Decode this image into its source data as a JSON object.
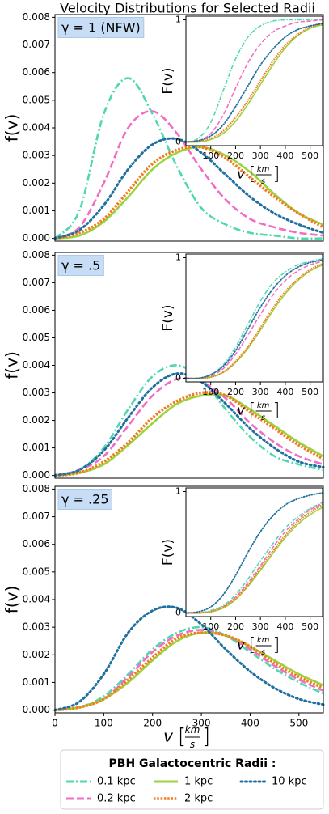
{
  "figure": {
    "title": "Velocity Distributions for Selected Radii",
    "legend_title": "PBH Galactocentric Radii :"
  },
  "chart_data": [
    {
      "type": "line",
      "label": "γ = 1 (NFW)",
      "ylabel": "f(v)",
      "x": [
        0,
        50,
        100,
        150,
        200,
        250,
        300,
        350,
        400,
        450,
        500,
        550
      ],
      "xlim": [
        0,
        550
      ],
      "ylim": [
        -0.0001,
        0.0081
      ],
      "yticks": [
        {
          "value": 0,
          "label": "0.000"
        },
        {
          "value": 0.001,
          "label": "0.001"
        },
        {
          "value": 0.002,
          "label": "0.002"
        },
        {
          "value": 0.003,
          "label": "0.003"
        },
        {
          "value": 0.004,
          "label": "0.004"
        },
        {
          "value": 0.005,
          "label": "0.005"
        },
        {
          "value": 0.006,
          "label": "0.006"
        },
        {
          "value": 0.007,
          "label": "0.007"
        },
        {
          "value": 0.008,
          "label": "0.008"
        }
      ],
      "series": [
        {
          "name": "0.1 kpc",
          "color": "#4fd8b0",
          "dash": "dashdot",
          "values": [
            0,
            0.001,
            0.0045,
            0.0058,
            0.0045,
            0.0026,
            0.0011,
            0.0005,
            0.0002,
            0.0001,
            0,
            0
          ]
        },
        {
          "name": "0.2 kpc",
          "color": "#f26cc4",
          "dash": "dashed",
          "values": [
            0,
            0.0004,
            0.002,
            0.004,
            0.0046,
            0.0038,
            0.0025,
            0.0014,
            0.0007,
            0.0004,
            0.0002,
            0.0001
          ]
        },
        {
          "name": "1 kpc",
          "color": "#9ad43a",
          "dash": "solid",
          "values": [
            0,
            0.0001,
            0.0006,
            0.0015,
            0.0025,
            0.0031,
            0.0033,
            0.003,
            0.0024,
            0.0016,
            0.0009,
            0.0005
          ]
        },
        {
          "name": "2 kpc",
          "color": "#f57a1f",
          "dash": "dense",
          "values": [
            0,
            0.0002,
            0.0007,
            0.0017,
            0.0027,
            0.0032,
            0.0033,
            0.0029,
            0.0022,
            0.0015,
            0.0009,
            0.0004
          ]
        },
        {
          "name": "10 kpc",
          "color": "#1f6f9f",
          "dash": "dotted",
          "values": [
            0,
            0.0003,
            0.0012,
            0.0025,
            0.0034,
            0.0036,
            0.0031,
            0.0023,
            0.0015,
            0.0009,
            0.0005,
            0.0002
          ]
        }
      ],
      "inset": {
        "type": "line",
        "ylabel": "F(v)",
        "xlabel": {
          "symbol": "v",
          "num": "km",
          "den": "s"
        },
        "x": [
          0,
          50,
          100,
          150,
          200,
          250,
          300,
          350,
          400,
          450,
          500,
          550
        ],
        "xlim": [
          0,
          550
        ],
        "xticks": [
          100,
          200,
          300,
          400,
          500
        ],
        "ylim": [
          -0.03,
          1.03
        ],
        "yticks": [
          0,
          1
        ],
        "series": [
          {
            "name": "0.1 kpc",
            "color": "#4fd8b0",
            "dash": "dashdot",
            "values": [
              0,
              0.03,
              0.16,
              0.42,
              0.68,
              0.86,
              0.95,
              0.99,
              1,
              1,
              1,
              1
            ]
          },
          {
            "name": "0.2 kpc",
            "color": "#f26cc4",
            "dash": "dashed",
            "values": [
              0,
              0.01,
              0.07,
              0.22,
              0.44,
              0.65,
              0.8,
              0.9,
              0.95,
              0.98,
              0.99,
              1
            ]
          },
          {
            "name": "1 kpc",
            "color": "#9ad43a",
            "dash": "solid",
            "values": [
              0,
              0,
              0.02,
              0.07,
              0.17,
              0.31,
              0.47,
              0.63,
              0.77,
              0.87,
              0.93,
              0.96
            ]
          },
          {
            "name": "2 kpc",
            "color": "#f57a1f",
            "dash": "dense",
            "values": [
              0,
              0.01,
              0.03,
              0.09,
              0.2,
              0.34,
              0.5,
              0.66,
              0.79,
              0.88,
              0.94,
              0.97
            ]
          },
          {
            "name": "10 kpc",
            "color": "#1f6f9f",
            "dash": "dotted",
            "values": [
              0,
              0.01,
              0.05,
              0.14,
              0.29,
              0.46,
              0.63,
              0.76,
              0.86,
              0.92,
              0.95,
              0.97
            ]
          }
        ]
      }
    },
    {
      "type": "line",
      "label": "γ = .5",
      "ylabel": "f(v)",
      "x": [
        0,
        50,
        100,
        150,
        200,
        250,
        300,
        350,
        400,
        450,
        500,
        550
      ],
      "xlim": [
        0,
        550
      ],
      "ylim": [
        -0.0001,
        0.0081
      ],
      "yticks": [
        {
          "value": 0,
          "label": "0.000"
        },
        {
          "value": 0.001,
          "label": "0.001"
        },
        {
          "value": 0.002,
          "label": "0.002"
        },
        {
          "value": 0.003,
          "label": "0.003"
        },
        {
          "value": 0.004,
          "label": "0.004"
        },
        {
          "value": 0.005,
          "label": "0.005"
        },
        {
          "value": 0.006,
          "label": "0.006"
        },
        {
          "value": 0.007,
          "label": "0.007"
        },
        {
          "value": 0.008,
          "label": "0.008"
        }
      ],
      "series": [
        {
          "name": "0.1 kpc",
          "color": "#4fd8b0",
          "dash": "dashdot",
          "values": [
            0,
            0.0002,
            0.001,
            0.0024,
            0.0036,
            0.004,
            0.0035,
            0.0024,
            0.0014,
            0.0007,
            0.0004,
            0.0002
          ]
        },
        {
          "name": "0.2 kpc",
          "color": "#f26cc4",
          "dash": "dashed",
          "values": [
            0,
            0.0002,
            0.0007,
            0.0018,
            0.0029,
            0.0035,
            0.0034,
            0.0028,
            0.0019,
            0.0012,
            0.0007,
            0.0004
          ]
        },
        {
          "name": "1 kpc",
          "color": "#9ad43a",
          "dash": "solid",
          "values": [
            0,
            0.0001,
            0.0004,
            0.0011,
            0.0019,
            0.0026,
            0.0029,
            0.0029,
            0.0024,
            0.0018,
            0.0012,
            0.0007
          ]
        },
        {
          "name": "2 kpc",
          "color": "#f57a1f",
          "dash": "dense",
          "values": [
            0,
            0.0001,
            0.0005,
            0.0012,
            0.0021,
            0.0027,
            0.003,
            0.0029,
            0.0023,
            0.0017,
            0.0011,
            0.0006
          ]
        },
        {
          "name": "10 kpc",
          "color": "#1f6f9f",
          "dash": "dotted",
          "values": [
            0,
            0.0002,
            0.0009,
            0.0021,
            0.0032,
            0.0037,
            0.0034,
            0.0026,
            0.0017,
            0.001,
            0.0005,
            0.0003
          ]
        }
      ],
      "inset": {
        "type": "line",
        "ylabel": "F(v)",
        "xlabel": {
          "symbol": "v",
          "num": "km",
          "den": "s"
        },
        "x": [
          0,
          50,
          100,
          150,
          200,
          250,
          300,
          350,
          400,
          450,
          500,
          550
        ],
        "xlim": [
          0,
          550
        ],
        "xticks": [
          100,
          200,
          300,
          400,
          500
        ],
        "ylim": [
          -0.03,
          1.03
        ],
        "yticks": [
          0,
          1
        ],
        "series": [
          {
            "name": "0.1 kpc",
            "color": "#4fd8b0",
            "dash": "dashdot",
            "values": [
              0,
              0,
              0.03,
              0.11,
              0.26,
              0.45,
              0.64,
              0.79,
              0.88,
              0.94,
              0.97,
              0.99
            ]
          },
          {
            "name": "0.2 kpc",
            "color": "#f26cc4",
            "dash": "dashed",
            "values": [
              0,
              0,
              0.02,
              0.08,
              0.2,
              0.36,
              0.53,
              0.69,
              0.81,
              0.89,
              0.94,
              0.97
            ]
          },
          {
            "name": "1 kpc",
            "color": "#9ad43a",
            "dash": "solid",
            "values": [
              0,
              0,
              0.01,
              0.05,
              0.13,
              0.25,
              0.4,
              0.56,
              0.7,
              0.81,
              0.89,
              0.94
            ]
          },
          {
            "name": "2 kpc",
            "color": "#f57a1f",
            "dash": "dense",
            "values": [
              0,
              0,
              0.01,
              0.05,
              0.14,
              0.26,
              0.42,
              0.58,
              0.72,
              0.82,
              0.9,
              0.95
            ]
          },
          {
            "name": "10 kpc",
            "color": "#1f6f9f",
            "dash": "dotted",
            "values": [
              0,
              0,
              0.03,
              0.1,
              0.23,
              0.41,
              0.59,
              0.74,
              0.85,
              0.92,
              0.96,
              0.98
            ]
          }
        ]
      }
    },
    {
      "type": "line",
      "label": "γ = .25",
      "ylabel": "f(v)",
      "xlabel": {
        "symbol": "v",
        "num": "km",
        "den": "s"
      },
      "x": [
        0,
        50,
        100,
        150,
        200,
        250,
        300,
        350,
        400,
        450,
        500,
        550
      ],
      "xlim": [
        0,
        550
      ],
      "xticks": [
        0,
        100,
        200,
        300,
        400,
        500
      ],
      "ylim": [
        -0.0001,
        0.0081
      ],
      "yticks": [
        {
          "value": 0,
          "label": "0.000"
        },
        {
          "value": 0.001,
          "label": "0.001"
        },
        {
          "value": 0.002,
          "label": "0.002"
        },
        {
          "value": 0.003,
          "label": "0.003"
        },
        {
          "value": 0.004,
          "label": "0.004"
        },
        {
          "value": 0.005,
          "label": "0.005"
        },
        {
          "value": 0.006,
          "label": "0.006"
        },
        {
          "value": 0.007,
          "label": "0.007"
        },
        {
          "value": 0.008,
          "label": "0.008"
        }
      ],
      "series": [
        {
          "name": "0.1 kpc",
          "color": "#4fd8b0",
          "dash": "dashdot",
          "values": [
            0,
            0.0001,
            0.0005,
            0.0013,
            0.0022,
            0.0028,
            0.003,
            0.0027,
            0.0021,
            0.0015,
            0.001,
            0.0006
          ]
        },
        {
          "name": "0.2 kpc",
          "color": "#f26cc4",
          "dash": "dashed",
          "values": [
            0,
            0.0001,
            0.0004,
            0.0012,
            0.0021,
            0.0027,
            0.0029,
            0.0027,
            0.0022,
            0.0016,
            0.0011,
            0.0007
          ]
        },
        {
          "name": "1 kpc",
          "color": "#9ad43a",
          "dash": "solid",
          "values": [
            0,
            0.0001,
            0.0004,
            0.001,
            0.0018,
            0.0025,
            0.0028,
            0.0027,
            0.0023,
            0.0018,
            0.0013,
            0.0009
          ]
        },
        {
          "name": "2 kpc",
          "color": "#f57a1f",
          "dash": "dense",
          "values": [
            0,
            0.0001,
            0.0004,
            0.0011,
            0.0019,
            0.0026,
            0.0028,
            0.0027,
            0.0023,
            0.0017,
            0.0012,
            0.0008
          ]
        },
        {
          "name": "10 kpc",
          "color": "#1f6f9f",
          "dash": "dotted",
          "values": [
            0,
            0.0003,
            0.0013,
            0.0028,
            0.0036,
            0.0037,
            0.0031,
            0.0022,
            0.0014,
            0.0008,
            0.0004,
            0.0002
          ]
        }
      ],
      "inset": {
        "type": "line",
        "ylabel": "F(v)",
        "xlabel": {
          "symbol": "v",
          "num": "km",
          "den": "s"
        },
        "x": [
          0,
          50,
          100,
          150,
          200,
          250,
          300,
          350,
          400,
          450,
          500,
          550
        ],
        "xlim": [
          0,
          550
        ],
        "xticks": [
          100,
          200,
          300,
          400,
          500
        ],
        "ylim": [
          -0.03,
          1.03
        ],
        "yticks": [
          0,
          1
        ],
        "series": [
          {
            "name": "0.1 kpc",
            "color": "#4fd8b0",
            "dash": "dashdot",
            "values": [
              0,
              0,
              0.02,
              0.06,
              0.15,
              0.28,
              0.43,
              0.57,
              0.7,
              0.79,
              0.86,
              0.91
            ]
          },
          {
            "name": "0.2 kpc",
            "color": "#f26cc4",
            "dash": "dashed",
            "values": [
              0,
              0,
              0.01,
              0.05,
              0.13,
              0.25,
              0.39,
              0.54,
              0.67,
              0.77,
              0.85,
              0.9
            ]
          },
          {
            "name": "1 kpc",
            "color": "#9ad43a",
            "dash": "solid",
            "values": [
              0,
              0,
              0.01,
              0.04,
              0.11,
              0.22,
              0.35,
              0.49,
              0.62,
              0.73,
              0.81,
              0.87
            ]
          },
          {
            "name": "2 kpc",
            "color": "#f57a1f",
            "dash": "dense",
            "values": [
              0,
              0,
              0.01,
              0.05,
              0.12,
              0.23,
              0.37,
              0.51,
              0.64,
              0.75,
              0.83,
              0.89
            ]
          },
          {
            "name": "10 kpc",
            "color": "#1f6f9f",
            "dash": "dotted",
            "values": [
              0,
              0.01,
              0.05,
              0.15,
              0.31,
              0.5,
              0.67,
              0.8,
              0.89,
              0.94,
              0.97,
              0.99
            ]
          }
        ]
      }
    }
  ]
}
